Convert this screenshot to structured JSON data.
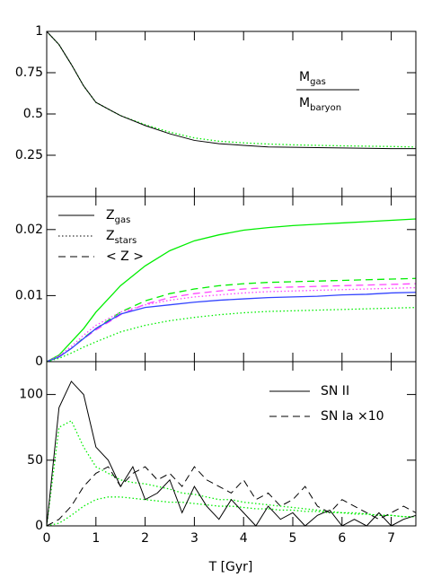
{
  "chart_data": [
    {
      "type": "line",
      "x": [
        0,
        0.25,
        0.5,
        0.75,
        1,
        1.5,
        2,
        2.5,
        3,
        3.5,
        4,
        4.5,
        5,
        5.5,
        6,
        6.5,
        7,
        7.5
      ],
      "ylim": [
        0,
        1
      ],
      "yticks": [
        0.25,
        0.5,
        0.75,
        1
      ],
      "annotation": {
        "numerator": {
          "main": "M",
          "sub": "gas"
        },
        "denominator": {
          "main": "M",
          "sub": "baryon"
        }
      },
      "series": [
        {
          "color": "#00ee00",
          "dash": "dotted",
          "values": [
            1,
            0.92,
            0.8,
            0.67,
            0.57,
            0.49,
            0.435,
            0.39,
            0.355,
            0.335,
            0.325,
            0.318,
            0.313,
            0.31,
            0.307,
            0.305,
            0.303,
            0.3
          ]
        },
        {
          "color": "#000000",
          "dash": "solid",
          "values": [
            1,
            0.92,
            0.8,
            0.67,
            0.57,
            0.49,
            0.43,
            0.38,
            0.34,
            0.32,
            0.31,
            0.3,
            0.298,
            0.296,
            0.294,
            0.292,
            0.29,
            0.29
          ]
        }
      ]
    },
    {
      "type": "line",
      "x": [
        0,
        0.25,
        0.5,
        0.75,
        1,
        1.5,
        2,
        2.5,
        3,
        3.5,
        4,
        4.5,
        5,
        5.5,
        6,
        6.5,
        7,
        7.5
      ],
      "ylim": [
        0,
        0.025
      ],
      "yticks": [
        0,
        0.01,
        0.02
      ],
      "legend": [
        {
          "main": "Z",
          "sub": "gas",
          "dash": "solid"
        },
        {
          "main": "Z",
          "sub": "stars",
          "dash": "dotted"
        },
        {
          "main": "< Z >",
          "dash": "dashed"
        }
      ],
      "series": [
        {
          "color": "#00ee00",
          "dash": "solid",
          "values": [
            0,
            0.001,
            0.003,
            0.005,
            0.0075,
            0.0115,
            0.0145,
            0.0168,
            0.0183,
            0.0192,
            0.0199,
            0.0203,
            0.0206,
            0.0208,
            0.021,
            0.0212,
            0.0214,
            0.0216
          ]
        },
        {
          "color": "#00ee00",
          "dash": "dashed",
          "values": [
            0,
            0.0008,
            0.002,
            0.0036,
            0.005,
            0.0075,
            0.0092,
            0.0103,
            0.011,
            0.0115,
            0.0118,
            0.012,
            0.0121,
            0.0122,
            0.0123,
            0.0124,
            0.0125,
            0.0126
          ]
        },
        {
          "color": "#ff44ff",
          "dash": "dashed",
          "values": [
            0,
            0.0008,
            0.002,
            0.0035,
            0.0048,
            0.0071,
            0.0087,
            0.0097,
            0.0103,
            0.0107,
            0.011,
            0.0112,
            0.0113,
            0.0114,
            0.0115,
            0.0116,
            0.0117,
            0.0118
          ]
        },
        {
          "color": "#ff44ff",
          "dash": "dotted",
          "values": [
            0,
            0.0009,
            0.0023,
            0.004,
            0.0055,
            0.0075,
            0.0086,
            0.0093,
            0.0098,
            0.0101,
            0.0104,
            0.0106,
            0.0107,
            0.0108,
            0.0109,
            0.011,
            0.0111,
            0.0112
          ]
        },
        {
          "color": "#3344ff",
          "dash": "solid",
          "values": [
            0,
            0.0007,
            0.002,
            0.0035,
            0.005,
            0.0072,
            0.0082,
            0.0086,
            0.009,
            0.0093,
            0.0095,
            0.0097,
            0.0098,
            0.0099,
            0.0101,
            0.0102,
            0.0104,
            0.0105
          ]
        },
        {
          "color": "#00ee00",
          "dash": "dotted",
          "values": [
            0,
            0.0005,
            0.0013,
            0.0022,
            0.003,
            0.0045,
            0.0055,
            0.0062,
            0.0067,
            0.0071,
            0.0074,
            0.0076,
            0.0077,
            0.0078,
            0.0079,
            0.008,
            0.0081,
            0.0082
          ]
        }
      ]
    },
    {
      "type": "line",
      "x": [
        0,
        0.25,
        0.5,
        0.75,
        1,
        1.25,
        1.5,
        1.75,
        2,
        2.25,
        2.5,
        2.75,
        3,
        3.25,
        3.5,
        3.75,
        4,
        4.25,
        4.5,
        4.75,
        5,
        5.25,
        5.5,
        5.75,
        6,
        6.25,
        6.5,
        6.75,
        7,
        7.25,
        7.5
      ],
      "xlim": [
        0,
        7.5
      ],
      "xticks": [
        0,
        1,
        2,
        3,
        4,
        5,
        6,
        7
      ],
      "xlabel": "T [Gyr]",
      "ylim": [
        0,
        125
      ],
      "yticks": [
        0,
        50,
        100
      ],
      "legend": [
        {
          "main": "SN II",
          "dash": "solid"
        },
        {
          "main": "SN Ia ×10",
          "dash": "dashed"
        }
      ],
      "series": [
        {
          "color": "#00ee00",
          "dash": "dotted",
          "values": [
            0,
            75,
            80,
            60,
            45,
            40,
            35,
            33,
            32,
            30,
            28,
            25,
            24,
            22,
            20,
            20,
            18,
            17,
            16,
            15,
            14,
            13,
            12,
            11,
            10,
            10,
            9,
            8,
            8,
            7,
            7
          ]
        },
        {
          "color": "#00ee00",
          "dash": "dotted",
          "values": [
            0,
            2,
            8,
            15,
            20,
            22,
            22,
            21,
            20,
            19,
            18,
            18,
            17,
            16,
            15,
            15,
            14,
            13,
            13,
            12,
            12,
            11,
            11,
            10,
            10,
            9,
            9,
            8,
            8,
            7,
            7
          ]
        },
        {
          "color": "#000000",
          "dash": "dashed",
          "values": [
            0,
            5,
            15,
            30,
            40,
            45,
            30,
            40,
            45,
            35,
            40,
            30,
            45,
            35,
            30,
            25,
            35,
            20,
            25,
            15,
            20,
            30,
            15,
            10,
            20,
            15,
            10,
            5,
            10,
            15,
            10
          ]
        },
        {
          "color": "#000000",
          "dash": "solid",
          "values": [
            0,
            90,
            110,
            100,
            60,
            50,
            30,
            45,
            20,
            25,
            35,
            10,
            30,
            15,
            5,
            20,
            10,
            0,
            15,
            5,
            10,
            0,
            8,
            12,
            0,
            5,
            0,
            10,
            0,
            5,
            8
          ]
        }
      ]
    }
  ]
}
